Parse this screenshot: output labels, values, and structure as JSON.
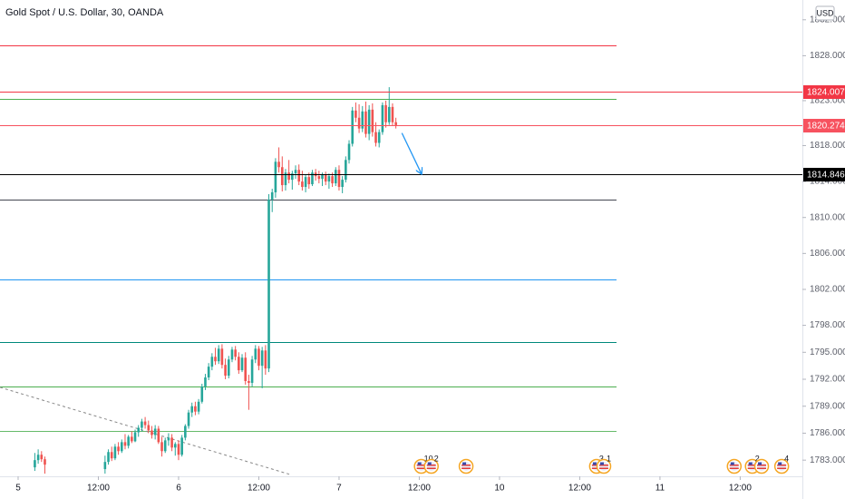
{
  "chart_data": {
    "type": "candlestick",
    "title": "Gold Spot / U.S. Dollar, 30, OANDA",
    "currency": "USD",
    "up_color": "#26a69a",
    "down_color": "#ef5350",
    "xlim": [
      -2.71,
      117.3
    ],
    "ylim": [
      1781.2,
      1834.2
    ],
    "xticks": [
      {
        "value": 0,
        "label": "5"
      },
      {
        "value": 12,
        "label": "12:00"
      },
      {
        "value": 24,
        "label": "6"
      },
      {
        "value": 36,
        "label": "12:00"
      },
      {
        "value": 48,
        "label": "7"
      },
      {
        "value": 60,
        "label": "12:00"
      },
      {
        "value": 72,
        "label": "10"
      },
      {
        "value": 84,
        "label": "12:00"
      },
      {
        "value": 96,
        "label": "11"
      },
      {
        "value": 108,
        "label": "12:00"
      }
    ],
    "yticks": [
      {
        "value": 1832,
        "label": "1832.000"
      },
      {
        "value": 1828,
        "label": "1828.000"
      },
      {
        "value": 1823,
        "label": "1823.000"
      },
      {
        "value": 1818,
        "label": "1818.000"
      },
      {
        "value": 1814,
        "label": "1814.000"
      },
      {
        "value": 1810,
        "label": "1810.000"
      },
      {
        "value": 1806,
        "label": "1806.000"
      },
      {
        "value": 1802,
        "label": "1802.000"
      },
      {
        "value": 1798,
        "label": "1798.000"
      },
      {
        "value": 1795,
        "label": "1795.000"
      },
      {
        "value": 1792,
        "label": "1792.000"
      },
      {
        "value": 1789,
        "label": "1789.000"
      },
      {
        "value": 1786,
        "label": "1786.000"
      },
      {
        "value": 1783,
        "label": "1783.000"
      }
    ],
    "x": [
      2.5,
      3,
      3.5,
      4,
      13,
      13.5,
      14,
      14.5,
      15,
      15.5,
      16,
      16.5,
      17,
      17.5,
      18,
      18.5,
      19,
      19.5,
      20,
      20.5,
      21,
      21.5,
      22,
      22.5,
      23,
      23.5,
      24,
      24.5,
      25,
      25.5,
      26,
      26.5,
      27,
      27.5,
      28,
      28.5,
      29,
      29.5,
      30,
      30.5,
      31,
      31.5,
      32,
      32.5,
      33,
      33.5,
      34,
      34.5,
      35,
      35.5,
      36,
      36.5,
      37,
      37.5,
      38,
      38.5,
      39,
      39.5,
      40,
      40.5,
      41,
      41.5,
      42,
      42.5,
      43,
      43.5,
      44,
      44.5,
      45,
      45.5,
      46,
      46.5,
      47,
      47.5,
      48,
      48.5,
      49,
      49.5,
      50,
      50.5,
      51,
      51.5,
      52,
      52.5,
      53,
      53.5,
      54,
      54.5,
      55,
      55.5,
      56,
      56.5
    ],
    "ohlc": [
      [
        1782.2,
        1783.8,
        1781.8,
        1783.0
      ],
      [
        1783.0,
        1784.2,
        1782.6,
        1783.6
      ],
      [
        1783.6,
        1784.0,
        1782.8,
        1783.1
      ],
      [
        1783.1,
        1783.4,
        1781.5,
        1782.5
      ],
      [
        1782.0,
        1783.5,
        1781.5,
        1782.8
      ],
      [
        1782.8,
        1784.2,
        1782.5,
        1783.9
      ],
      [
        1783.9,
        1784.5,
        1782.9,
        1783.2
      ],
      [
        1783.2,
        1784.8,
        1783.0,
        1784.5
      ],
      [
        1784.5,
        1785.0,
        1783.6,
        1784.0
      ],
      [
        1784.0,
        1785.3,
        1783.8,
        1785.0
      ],
      [
        1785.0,
        1785.9,
        1784.2,
        1784.6
      ],
      [
        1784.6,
        1785.8,
        1784.3,
        1785.6
      ],
      [
        1785.6,
        1786.2,
        1784.9,
        1785.1
      ],
      [
        1785.1,
        1786.4,
        1785.0,
        1786.1
      ],
      [
        1786.1,
        1786.9,
        1785.6,
        1786.6
      ],
      [
        1786.6,
        1787.6,
        1786.2,
        1787.3
      ],
      [
        1787.3,
        1787.8,
        1786.5,
        1786.9
      ],
      [
        1786.9,
        1787.4,
        1786.0,
        1786.3
      ],
      [
        1786.3,
        1786.8,
        1785.4,
        1785.8
      ],
      [
        1785.8,
        1786.9,
        1785.3,
        1786.5
      ],
      [
        1786.5,
        1786.8,
        1784.8,
        1785.0
      ],
      [
        1785.0,
        1785.6,
        1783.4,
        1784.0
      ],
      [
        1784.0,
        1785.5,
        1783.8,
        1785.2
      ],
      [
        1785.2,
        1786.0,
        1784.6,
        1785.5
      ],
      [
        1785.5,
        1785.9,
        1784.0,
        1784.4
      ],
      [
        1784.4,
        1785.0,
        1783.5,
        1784.8
      ],
      [
        1784.8,
        1785.2,
        1783.0,
        1783.6
      ],
      [
        1783.6,
        1785.8,
        1783.4,
        1785.5
      ],
      [
        1785.5,
        1787.0,
        1785.2,
        1786.8
      ],
      [
        1786.8,
        1788.6,
        1786.5,
        1788.3
      ],
      [
        1788.3,
        1789.4,
        1787.8,
        1789.0
      ],
      [
        1789.0,
        1789.5,
        1788.0,
        1788.4
      ],
      [
        1788.4,
        1789.8,
        1788.1,
        1789.5
      ],
      [
        1789.5,
        1791.5,
        1789.3,
        1791.2
      ],
      [
        1791.2,
        1792.6,
        1790.8,
        1792.2
      ],
      [
        1792.2,
        1793.8,
        1791.9,
        1793.4
      ],
      [
        1793.4,
        1794.9,
        1793.0,
        1794.5
      ],
      [
        1794.5,
        1795.5,
        1793.6,
        1794.0
      ],
      [
        1794.0,
        1795.8,
        1793.7,
        1795.4
      ],
      [
        1795.4,
        1795.9,
        1793.2,
        1793.6
      ],
      [
        1793.6,
        1794.3,
        1792.0,
        1792.4
      ],
      [
        1792.4,
        1794.6,
        1792.1,
        1794.2
      ],
      [
        1794.2,
        1795.6,
        1793.9,
        1795.3
      ],
      [
        1795.3,
        1795.7,
        1794.1,
        1794.5
      ],
      [
        1794.5,
        1795.0,
        1792.6,
        1793.0
      ],
      [
        1793.0,
        1794.8,
        1792.8,
        1794.4
      ],
      [
        1794.4,
        1795.0,
        1791.4,
        1791.8
      ],
      [
        1791.8,
        1792.5,
        1788.6,
        1791.6
      ],
      [
        1791.6,
        1794.6,
        1791.2,
        1794.2
      ],
      [
        1794.2,
        1795.8,
        1793.8,
        1795.4
      ],
      [
        1795.4,
        1795.7,
        1793.0,
        1793.5
      ],
      [
        1793.5,
        1795.6,
        1791.0,
        1795.2
      ],
      [
        1795.2,
        1795.8,
        1792.5,
        1793.2
      ],
      [
        1793.2,
        1812.6,
        1792.8,
        1812.0
      ],
      [
        1812.0,
        1813.2,
        1810.6,
        1812.8
      ],
      [
        1812.8,
        1816.6,
        1812.2,
        1816.2
      ],
      [
        1816.2,
        1817.8,
        1815.0,
        1815.6
      ],
      [
        1815.6,
        1816.8,
        1812.9,
        1813.6
      ],
      [
        1813.6,
        1815.4,
        1813.0,
        1815.0
      ],
      [
        1815.0,
        1816.4,
        1813.8,
        1814.2
      ],
      [
        1814.2,
        1815.2,
        1813.1,
        1814.9
      ],
      [
        1814.9,
        1815.8,
        1814.3,
        1815.3
      ],
      [
        1815.3,
        1815.9,
        1813.6,
        1814.0
      ],
      [
        1814.0,
        1815.2,
        1813.0,
        1813.4
      ],
      [
        1813.4,
        1814.8,
        1812.8,
        1814.5
      ],
      [
        1814.5,
        1815.0,
        1813.2,
        1813.7
      ],
      [
        1813.7,
        1815.3,
        1813.5,
        1815.0
      ],
      [
        1815.0,
        1815.4,
        1814.1,
        1814.6
      ],
      [
        1814.6,
        1815.2,
        1813.8,
        1814.3
      ],
      [
        1814.3,
        1815.0,
        1813.5,
        1814.8
      ],
      [
        1814.8,
        1815.1,
        1813.6,
        1814.0
      ],
      [
        1814.0,
        1814.9,
        1813.2,
        1814.6
      ],
      [
        1814.6,
        1815.0,
        1813.4,
        1813.8
      ],
      [
        1813.8,
        1815.6,
        1813.5,
        1815.3
      ],
      [
        1815.3,
        1815.8,
        1813.0,
        1813.4
      ],
      [
        1813.4,
        1814.6,
        1812.7,
        1814.2
      ],
      [
        1814.2,
        1816.8,
        1813.9,
        1816.4
      ],
      [
        1816.4,
        1818.6,
        1816.0,
        1818.2
      ],
      [
        1818.2,
        1822.3,
        1817.9,
        1821.9
      ],
      [
        1821.9,
        1822.8,
        1820.6,
        1821.1
      ],
      [
        1821.1,
        1822.6,
        1819.4,
        1819.9
      ],
      [
        1819.9,
        1822.4,
        1819.5,
        1821.8
      ],
      [
        1821.8,
        1822.9,
        1818.9,
        1819.3
      ],
      [
        1819.3,
        1822.5,
        1818.6,
        1822.0
      ],
      [
        1822.0,
        1822.7,
        1819.0,
        1819.5
      ],
      [
        1819.5,
        1820.6,
        1817.9,
        1818.3
      ],
      [
        1818.3,
        1819.8,
        1817.8,
        1819.5
      ],
      [
        1819.5,
        1822.8,
        1819.2,
        1822.5
      ],
      [
        1822.5,
        1823.0,
        1820.0,
        1820.6
      ],
      [
        1820.6,
        1824.5,
        1820.3,
        1822.3
      ],
      [
        1822.3,
        1822.7,
        1820.2,
        1820.6
      ],
      [
        1820.6,
        1821.1,
        1819.9,
        1820.274
      ]
    ],
    "levels": [
      {
        "value": 1829.15,
        "color": "#f23645"
      },
      {
        "value": 1823.2,
        "color": "#4caf50"
      },
      {
        "value": 1812.0,
        "color": "#434651"
      },
      {
        "value": 1803.1,
        "color": "#2196f3"
      },
      {
        "value": 1796.1,
        "color": "#00897b"
      },
      {
        "value": 1791.2,
        "color": "#4caf50"
      },
      {
        "value": 1786.2,
        "color": "#66bb6a"
      }
    ],
    "price_lines": [
      {
        "value": 1824.007,
        "color": "#f23645"
      },
      {
        "value": 1820.274,
        "color": "#f7525f"
      },
      {
        "value": 1814.846,
        "color": "#000000"
      }
    ],
    "trend_line": {
      "x": [
        -2.7,
        40.7
      ],
      "y": [
        1791.1,
        1781.4
      ],
      "color": "#888888"
    },
    "arrow": {
      "x": [
        57.4,
        60.3
      ],
      "y": [
        1819.4,
        1814.9
      ],
      "color": "#2196f3"
    },
    "events": [
      {
        "x": 60.3,
        "label": "10"
      },
      {
        "x": 61.8,
        "label": "2"
      },
      {
        "x": 67.0
      },
      {
        "x": 86.5,
        "label": "3"
      },
      {
        "x": 87.6,
        "label": "1"
      },
      {
        "x": 107.1
      },
      {
        "x": 109.8,
        "label": "2"
      },
      {
        "x": 111.2
      },
      {
        "x": 114.2,
        "label": "4"
      }
    ]
  }
}
